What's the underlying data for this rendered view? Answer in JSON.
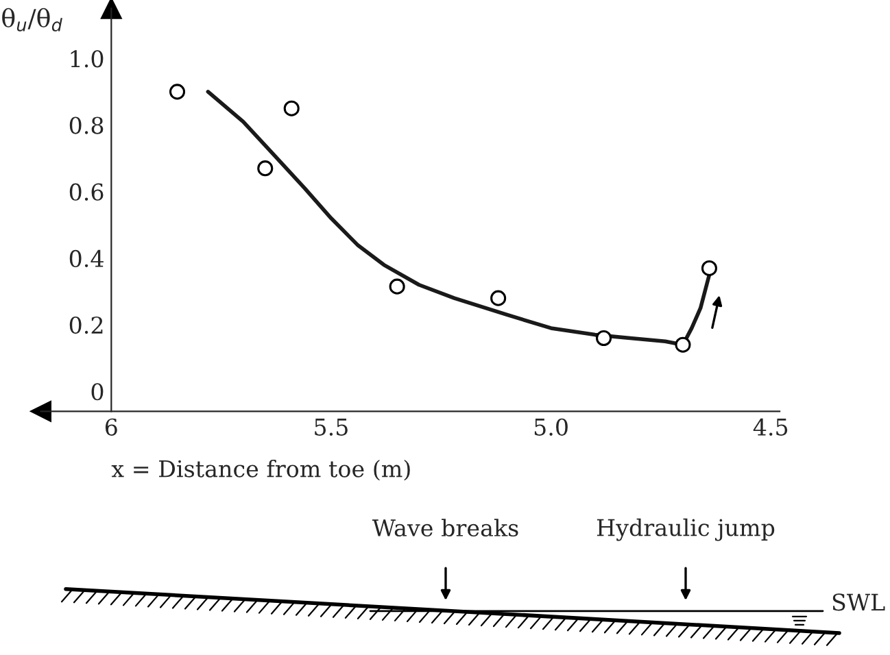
{
  "chart_data": {
    "type": "scatter",
    "ylabel": "θ$_{u}$/θ$_{d}$",
    "xlabel": "x = Distance from toe (m)",
    "xlim": [
      6.16,
      4.48
    ],
    "xticks": [
      6,
      5.5,
      {
        "value": 5.0,
        "label": "5.0"
      },
      4.5
    ],
    "ylim": [
      -0.06,
      1.15
    ],
    "yticks": [
      0,
      0.2,
      0.4,
      0.6,
      0.8,
      {
        "value": 1.0,
        "label": "1.0"
      }
    ],
    "grid": false,
    "legend": false,
    "marker": "circle",
    "series": [
      {
        "type": "scatter",
        "color": "#000000",
        "x": [
          5.85,
          5.65,
          5.59,
          5.35,
          5.12,
          4.88,
          4.7,
          4.64
        ],
        "values": [
          0.9,
          0.67,
          0.85,
          0.315,
          0.28,
          0.16,
          0.14,
          0.37
        ]
      },
      {
        "type": "line",
        "color": "#1a1a1a",
        "marker": "none",
        "line_style": "solid",
        "x": [
          5.78,
          5.7,
          5.63,
          5.56,
          5.5,
          5.44,
          5.38,
          5.3,
          5.22,
          5.1,
          5.0,
          4.9,
          4.82,
          4.74,
          4.7,
          4.68,
          4.66,
          4.64
        ],
        "values": [
          0.9,
          0.81,
          0.71,
          0.61,
          0.52,
          0.44,
          0.38,
          0.32,
          0.28,
          0.23,
          0.19,
          0.17,
          0.16,
          0.15,
          0.14,
          0.19,
          0.25,
          0.35
        ]
      }
    ],
    "annotations": [
      "Wave breaks",
      "Hydraulic jump",
      "SWL"
    ]
  }
}
